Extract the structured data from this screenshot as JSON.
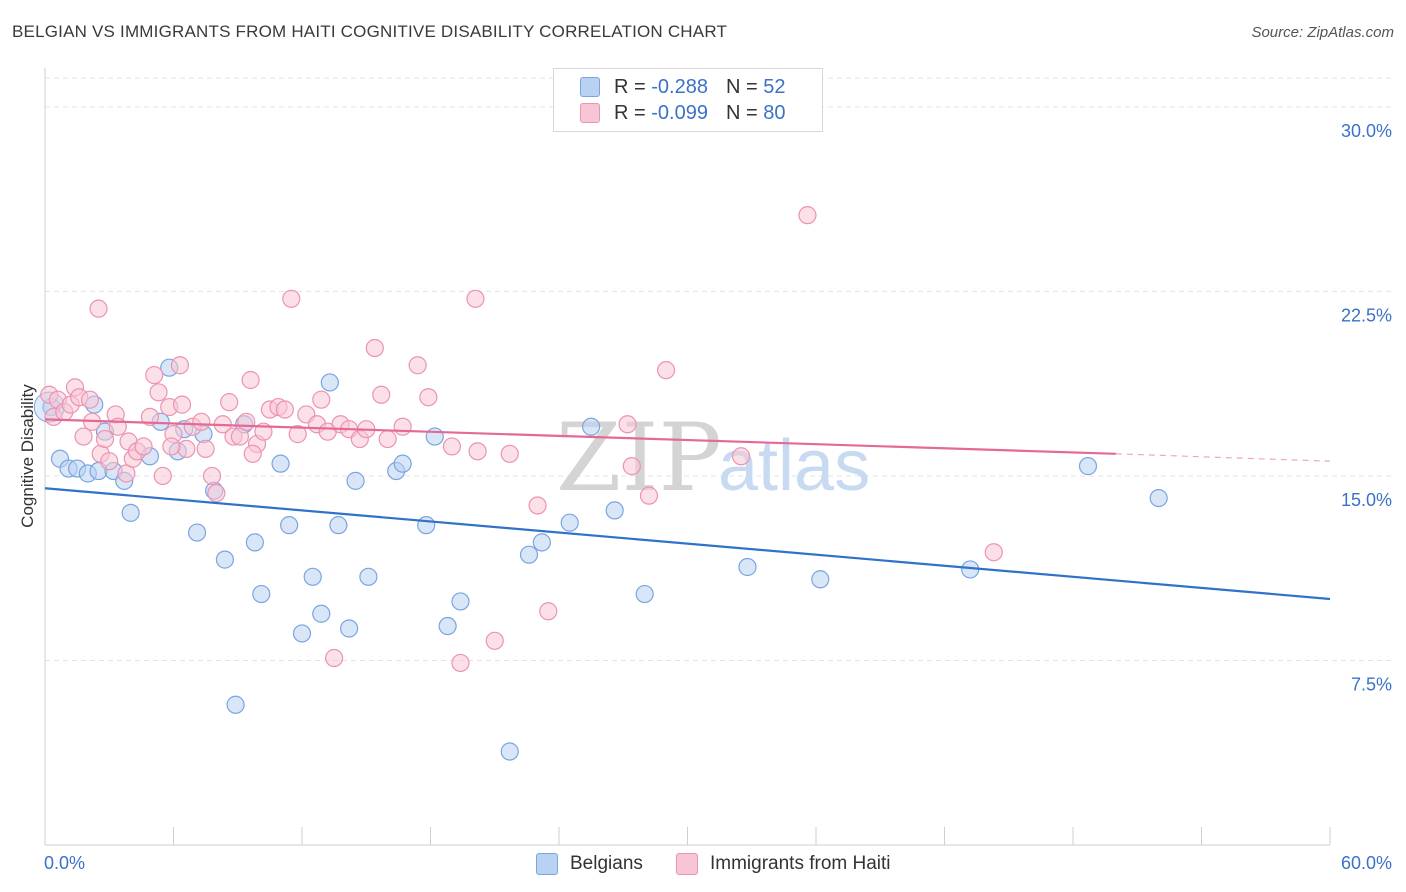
{
  "title": "BELGIAN VS IMMIGRANTS FROM HAITI COGNITIVE DISABILITY CORRELATION CHART",
  "source": "Source: ZipAtlas.com",
  "watermark": {
    "zip": "ZIP",
    "atlas": "atlas"
  },
  "colors": {
    "blue_fill": "#b9d1f3",
    "blue_stroke": "#7aa5e0",
    "blue_line": "#2f72c9",
    "pink_fill": "#f7c6d6",
    "pink_stroke": "#ec93b2",
    "pink_line": "#e46a94",
    "tick_label": "#3a72c9",
    "grid": "#e3e3e3"
  },
  "legend": {
    "r_label": "R =",
    "n_label": "N =",
    "rows": [
      {
        "r": "-0.288",
        "n": "52",
        "color": "#b9d1f3",
        "border": "#7aa5e0"
      },
      {
        "r": "-0.099",
        "n": "80",
        "color": "#f7c6d6",
        "border": "#ec93b2"
      }
    ]
  },
  "bottom_legend": [
    {
      "label": "Belgians",
      "color": "#b9d1f3",
      "border": "#7aa5e0"
    },
    {
      "label": "Immigrants from Haiti",
      "color": "#f7c6d6",
      "border": "#ec93b2"
    }
  ],
  "chart_data": {
    "type": "scatter",
    "title": "BELGIAN VS IMMIGRANTS FROM HAITI COGNITIVE DISABILITY CORRELATION CHART",
    "xlabel": "",
    "ylabel": "Cognitive Disability",
    "xlim": [
      0,
      60
    ],
    "ylim": [
      0,
      31.5
    ],
    "x_ticks": [
      "0.0%",
      "60.0%"
    ],
    "y_ticks": [
      {
        "value": 7.5,
        "label": "7.5%"
      },
      {
        "value": 15.0,
        "label": "15.0%"
      },
      {
        "value": 22.5,
        "label": "22.5%"
      },
      {
        "value": 30.0,
        "label": "30.0%"
      }
    ],
    "grid": true,
    "series": [
      {
        "name": "Belgians",
        "color": "#b9d1f3",
        "r": -0.288,
        "n": 52,
        "trend": {
          "x": [
            0,
            60
          ],
          "y": [
            14.5,
            10.0
          ]
        },
        "points": [
          [
            0.3,
            17.8
          ],
          [
            0.7,
            15.7
          ],
          [
            1.1,
            15.3
          ],
          [
            1.5,
            15.3
          ],
          [
            2.0,
            15.1
          ],
          [
            2.5,
            15.2
          ],
          [
            2.8,
            16.8
          ],
          [
            3.2,
            15.2
          ],
          [
            3.7,
            14.8
          ],
          [
            4.0,
            13.5
          ],
          [
            4.9,
            15.8
          ],
          [
            5.4,
            17.2
          ],
          [
            5.8,
            19.4
          ],
          [
            6.2,
            16.0
          ],
          [
            6.5,
            16.9
          ],
          [
            7.1,
            12.7
          ],
          [
            7.4,
            16.7
          ],
          [
            7.9,
            14.4
          ],
          [
            8.4,
            11.6
          ],
          [
            8.9,
            5.7
          ],
          [
            9.3,
            17.1
          ],
          [
            9.8,
            12.3
          ],
          [
            10.1,
            10.2
          ],
          [
            11.0,
            15.5
          ],
          [
            11.4,
            13.0
          ],
          [
            12.0,
            8.6
          ],
          [
            12.5,
            10.9
          ],
          [
            12.9,
            9.4
          ],
          [
            13.3,
            18.8
          ],
          [
            13.7,
            13.0
          ],
          [
            14.2,
            8.8
          ],
          [
            14.5,
            14.8
          ],
          [
            15.1,
            10.9
          ],
          [
            16.4,
            15.2
          ],
          [
            16.7,
            15.5
          ],
          [
            17.8,
            13.0
          ],
          [
            18.2,
            16.6
          ],
          [
            18.8,
            8.9
          ],
          [
            19.4,
            9.9
          ],
          [
            21.7,
            3.8
          ],
          [
            22.6,
            11.8
          ],
          [
            23.2,
            12.3
          ],
          [
            24.5,
            13.1
          ],
          [
            25.5,
            17.0
          ],
          [
            26.6,
            13.6
          ],
          [
            28.0,
            10.2
          ],
          [
            32.8,
            11.3
          ],
          [
            36.2,
            10.8
          ],
          [
            43.2,
            11.2
          ],
          [
            48.7,
            15.4
          ],
          [
            52.0,
            14.1
          ],
          [
            2.3,
            17.9
          ]
        ]
      },
      {
        "name": "Immigrants from Haiti",
        "color": "#f7c6d6",
        "r": -0.099,
        "n": 80,
        "trend": {
          "x": [
            0,
            50
          ],
          "y": [
            17.3,
            15.9
          ]
        },
        "trend_dashed": {
          "x": [
            50,
            60
          ],
          "y": [
            15.9,
            15.6
          ]
        },
        "points": [
          [
            0.2,
            18.3
          ],
          [
            0.4,
            17.4
          ],
          [
            0.6,
            18.1
          ],
          [
            0.9,
            17.6
          ],
          [
            1.2,
            17.9
          ],
          [
            1.4,
            18.6
          ],
          [
            1.6,
            18.2
          ],
          [
            1.8,
            16.6
          ],
          [
            2.1,
            18.1
          ],
          [
            2.2,
            17.2
          ],
          [
            2.5,
            21.8
          ],
          [
            2.6,
            15.9
          ],
          [
            2.8,
            16.5
          ],
          [
            3.0,
            15.6
          ],
          [
            3.3,
            17.5
          ],
          [
            3.4,
            17.0
          ],
          [
            3.8,
            15.1
          ],
          [
            3.9,
            16.4
          ],
          [
            4.1,
            15.7
          ],
          [
            4.3,
            16.0
          ],
          [
            4.6,
            16.2
          ],
          [
            4.9,
            17.4
          ],
          [
            5.1,
            19.1
          ],
          [
            5.3,
            18.4
          ],
          [
            5.5,
            15.0
          ],
          [
            5.8,
            17.8
          ],
          [
            6.0,
            16.7
          ],
          [
            6.3,
            19.5
          ],
          [
            6.4,
            17.9
          ],
          [
            6.6,
            16.1
          ],
          [
            6.9,
            17.0
          ],
          [
            7.3,
            17.2
          ],
          [
            7.5,
            16.1
          ],
          [
            7.8,
            15.0
          ],
          [
            8.0,
            14.3
          ],
          [
            8.3,
            17.1
          ],
          [
            8.6,
            18.0
          ],
          [
            8.8,
            16.6
          ],
          [
            9.1,
            16.6
          ],
          [
            9.4,
            17.2
          ],
          [
            9.6,
            18.9
          ],
          [
            9.9,
            16.3
          ],
          [
            10.2,
            16.8
          ],
          [
            10.5,
            17.7
          ],
          [
            10.9,
            17.8
          ],
          [
            11.2,
            17.7
          ],
          [
            11.5,
            22.2
          ],
          [
            11.8,
            16.7
          ],
          [
            12.2,
            17.5
          ],
          [
            12.7,
            17.1
          ],
          [
            12.9,
            18.1
          ],
          [
            13.2,
            16.8
          ],
          [
            13.8,
            17.1
          ],
          [
            14.2,
            16.9
          ],
          [
            14.7,
            16.5
          ],
          [
            15.0,
            16.9
          ],
          [
            15.4,
            20.2
          ],
          [
            15.7,
            18.3
          ],
          [
            16.0,
            16.5
          ],
          [
            16.7,
            17.0
          ],
          [
            17.4,
            19.5
          ],
          [
            17.9,
            18.2
          ],
          [
            19.0,
            16.2
          ],
          [
            19.4,
            7.4
          ],
          [
            20.1,
            22.2
          ],
          [
            20.2,
            16.0
          ],
          [
            21.7,
            15.9
          ],
          [
            23.0,
            13.8
          ],
          [
            27.2,
            17.1
          ],
          [
            27.4,
            15.4
          ],
          [
            28.2,
            14.2
          ],
          [
            29.0,
            19.3
          ],
          [
            32.5,
            15.8
          ],
          [
            35.6,
            25.6
          ],
          [
            44.3,
            11.9
          ],
          [
            13.5,
            7.6
          ],
          [
            21.0,
            8.3
          ],
          [
            23.5,
            9.5
          ],
          [
            9.7,
            15.9
          ],
          [
            5.9,
            16.2
          ]
        ]
      }
    ]
  }
}
